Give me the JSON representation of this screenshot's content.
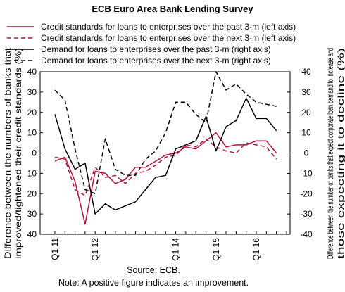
{
  "chart_data": {
    "type": "line",
    "title": "ECB Euro Area Bank Lending Survey",
    "x_tick_labels": [
      "Q1 11",
      "Q1 12",
      "Q1 14",
      "Q1 15",
      "Q1 16"
    ],
    "left_axis": {
      "label": "Difference between the numbers of banks that improved/tightened their credit standards (%)",
      "tick_labels": [
        "40",
        "30",
        "20",
        "10",
        "0",
        "10",
        "20",
        "30",
        "40"
      ],
      "ylim": [
        -40,
        40
      ]
    },
    "right_axis": {
      "label": "Difference between the number of banks that expect corporate loan demand to increase and those expecting it to decline (%)",
      "tick_labels": [
        "40",
        "30",
        "20",
        "10",
        "0",
        "-10",
        "-20",
        "-30",
        "-40"
      ],
      "ylim": [
        -40,
        40
      ]
    },
    "x_quarters": [
      "Q1 11",
      "Q2 11",
      "Q3 11",
      "Q4 11",
      "Q1 12",
      "Q2 12",
      "Q3 12",
      "Q4 12",
      "Q1 13",
      "Q2 13",
      "Q3 13",
      "Q4 13",
      "Q1 14",
      "Q2 14",
      "Q3 14",
      "Q4 14",
      "Q1 15",
      "Q2 15",
      "Q3 15",
      "Q4 15",
      "Q1 16",
      "Q2 16",
      "Q3 16",
      "Q4 16"
    ],
    "series": [
      {
        "name": "Credit standards for loans to enterprises over the past 3-m (left axis)",
        "axis": "left",
        "color": "#b5123a",
        "dash": "solid",
        "points": [
          [
            0,
            -4
          ],
          [
            1,
            -2
          ],
          [
            2,
            -14
          ],
          [
            3,
            -35
          ],
          [
            4,
            -9
          ],
          [
            5,
            -10
          ],
          [
            6,
            -15
          ],
          [
            7,
            -13
          ],
          [
            8,
            -7
          ],
          [
            9,
            -7
          ],
          [
            10,
            -4
          ],
          [
            11,
            -1
          ],
          [
            12,
            0
          ],
          [
            13,
            3
          ],
          [
            14,
            2
          ],
          [
            15,
            6
          ],
          [
            16,
            10
          ],
          [
            17,
            3
          ],
          [
            18,
            4
          ],
          [
            19,
            4
          ],
          [
            20,
            6
          ],
          [
            21,
            6
          ],
          [
            22,
            0
          ]
        ]
      },
      {
        "name": "Credit standards for loans to enterprises over the next 3-m (left axis)",
        "axis": "left",
        "color": "#b5123a",
        "dash": "dashed",
        "points": [
          [
            0,
            -2
          ],
          [
            1,
            -3
          ],
          [
            2,
            -18
          ],
          [
            3,
            -21
          ],
          [
            4,
            -7
          ],
          [
            5,
            -12
          ],
          [
            6,
            -11
          ],
          [
            7,
            -15
          ],
          [
            8,
            -10
          ],
          [
            9,
            -9
          ],
          [
            10,
            -6
          ],
          [
            11,
            -2
          ],
          [
            12,
            -1
          ],
          [
            13,
            4
          ],
          [
            14,
            3
          ],
          [
            15,
            7
          ],
          [
            16,
            3
          ],
          [
            17,
            1
          ],
          [
            18,
            0
          ],
          [
            19,
            5
          ],
          [
            20,
            4
          ],
          [
            21,
            3
          ],
          [
            22,
            -3
          ]
        ]
      },
      {
        "name": "Demand for loans to enterprises over the past 3-m (right axis)",
        "axis": "right",
        "color": "#000000",
        "dash": "solid",
        "points": [
          [
            0,
            19
          ],
          [
            1,
            2
          ],
          [
            2,
            -8
          ],
          [
            3,
            -5
          ],
          [
            4,
            -30
          ],
          [
            5,
            -25
          ],
          [
            6,
            -28
          ],
          [
            7,
            -26
          ],
          [
            8,
            -24
          ],
          [
            9,
            -18
          ],
          [
            10,
            -12
          ],
          [
            11,
            -11
          ],
          [
            12,
            2
          ],
          [
            13,
            4
          ],
          [
            14,
            6
          ],
          [
            15,
            18
          ],
          [
            16,
            1
          ],
          [
            17,
            13
          ],
          [
            18,
            16
          ],
          [
            19,
            27
          ],
          [
            20,
            17
          ],
          [
            21,
            17
          ],
          [
            22,
            11
          ]
        ]
      },
      {
        "name": "Demand for loans to enterprises over the next 3-m (right axis)",
        "axis": "right",
        "color": "#000000",
        "dash": "dashed",
        "points": [
          [
            0,
            31
          ],
          [
            1,
            26
          ],
          [
            2,
            2
          ],
          [
            3,
            -18
          ],
          [
            4,
            -20
          ],
          [
            5,
            7
          ],
          [
            6,
            -8
          ],
          [
            7,
            -11
          ],
          [
            8,
            -11
          ],
          [
            9,
            -3
          ],
          [
            10,
            1
          ],
          [
            11,
            10
          ],
          [
            12,
            25
          ],
          [
            13,
            25
          ],
          [
            14,
            19
          ],
          [
            15,
            15
          ],
          [
            16,
            40
          ],
          [
            17,
            31
          ],
          [
            18,
            34
          ],
          [
            19,
            29
          ],
          [
            20,
            25
          ],
          [
            21,
            24
          ],
          [
            22,
            23
          ]
        ]
      }
    ],
    "source": "Source: ECB.",
    "note": "Note: A positive figure indicates an improvement."
  }
}
